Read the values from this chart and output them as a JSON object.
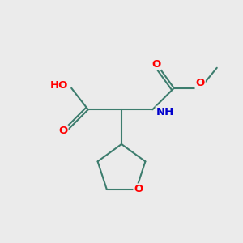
{
  "bg_color": "#ebebeb",
  "bond_color": "#3d7d6e",
  "atom_colors": {
    "O": "#ff0000",
    "N": "#0000cc",
    "H": "#808080",
    "C": "#3d7d6e"
  },
  "font_size_atoms": 9.5,
  "font_size_small": 8.5,
  "line_width": 1.5,
  "figsize": [
    3.0,
    3.0
  ],
  "dpi": 100
}
